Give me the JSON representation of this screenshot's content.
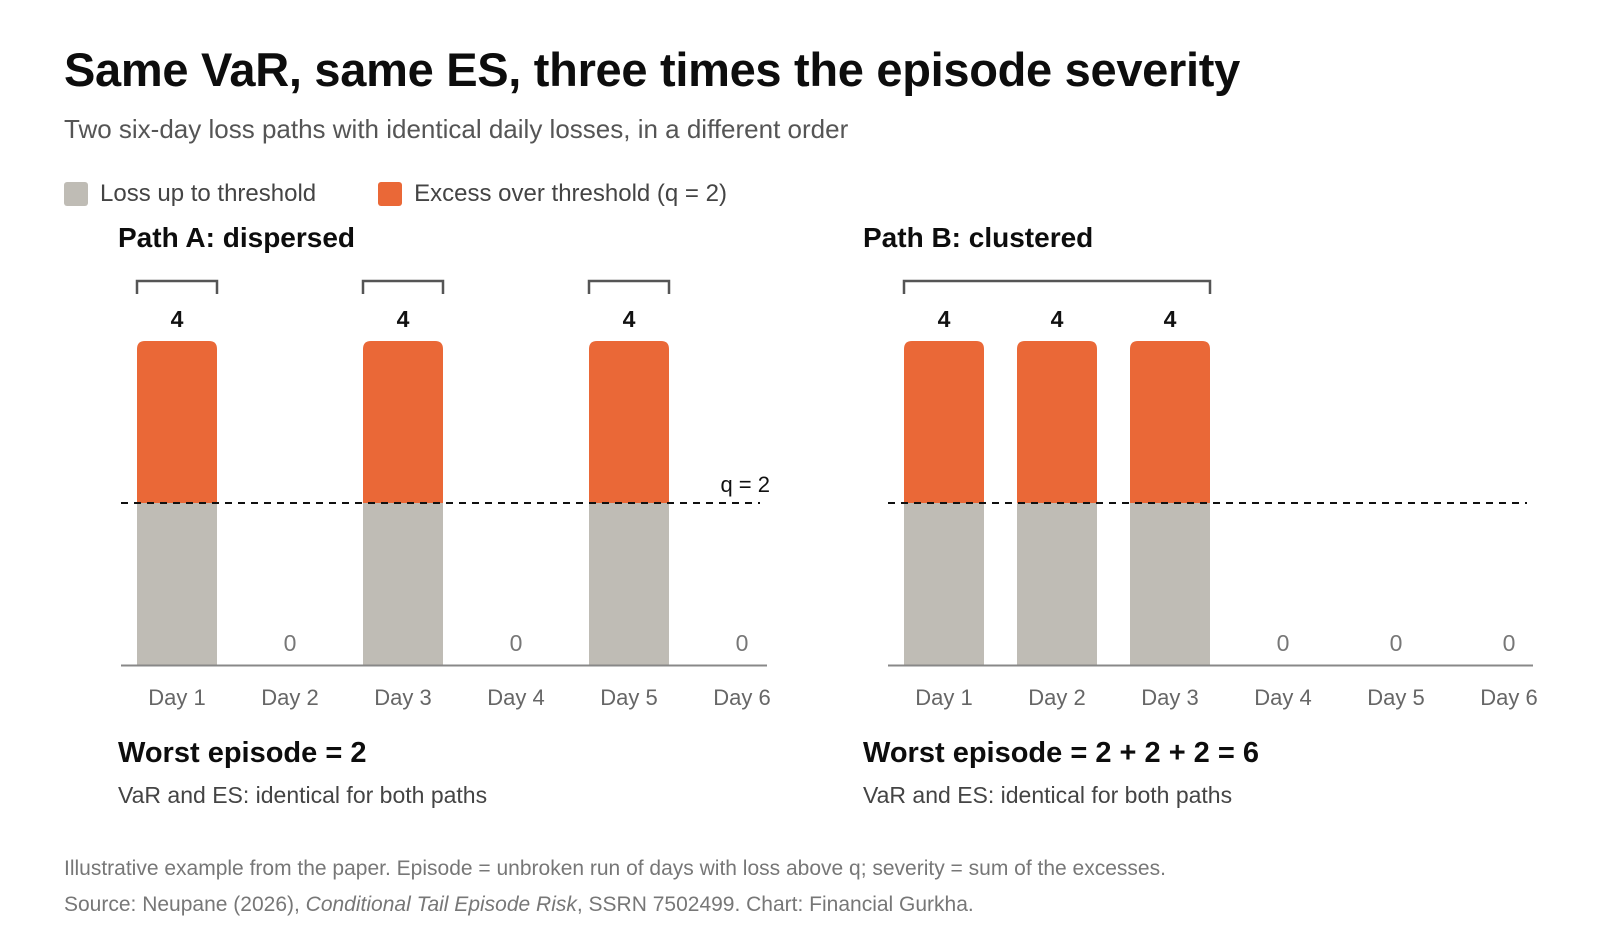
{
  "header": {
    "title": "Same VaR, same ES, three times the episode severity",
    "subtitle": "Two six-day loss paths with identical daily losses, in a different order"
  },
  "legend": {
    "threshold_label": "Loss up to threshold",
    "excess_label": "Excess over threshold (q = 2)"
  },
  "colors": {
    "threshold": "#bfbcb5",
    "excess": "#ea6837",
    "axis": "#888888",
    "bracket": "#555555"
  },
  "chart_data": [
    {
      "type": "bar",
      "stacked": true,
      "title": "Path A: dispersed",
      "categories": [
        "Day 1",
        "Day 2",
        "Day 3",
        "Day 4",
        "Day 5",
        "Day 6"
      ],
      "values": [
        4,
        0,
        4,
        0,
        4,
        0
      ],
      "series": [
        {
          "name": "Loss up to threshold",
          "values": [
            2,
            0,
            2,
            0,
            2,
            0
          ]
        },
        {
          "name": "Excess over threshold (q = 2)",
          "values": [
            2,
            0,
            2,
            0,
            2,
            0
          ]
        }
      ],
      "threshold": 2,
      "threshold_label": "q = 2",
      "episodes": [
        [
          0,
          0
        ],
        [
          2,
          2
        ],
        [
          4,
          4
        ]
      ],
      "ylim": [
        0,
        4
      ]
    },
    {
      "type": "bar",
      "stacked": true,
      "title": "Path B: clustered",
      "categories": [
        "Day 1",
        "Day 2",
        "Day 3",
        "Day 4",
        "Day 5",
        "Day 6"
      ],
      "values": [
        4,
        4,
        4,
        0,
        0,
        0
      ],
      "series": [
        {
          "name": "Loss up to threshold",
          "values": [
            2,
            2,
            2,
            0,
            0,
            0
          ]
        },
        {
          "name": "Excess over threshold (q = 2)",
          "values": [
            2,
            2,
            2,
            0,
            0,
            0
          ]
        }
      ],
      "threshold": 2,
      "threshold_label": "",
      "episodes": [
        [
          0,
          2
        ]
      ],
      "ylim": [
        0,
        4
      ]
    }
  ],
  "panels": [
    {
      "worst": "Worst episode = 2",
      "note": "VaR and ES: identical for both paths"
    },
    {
      "worst": "Worst episode = 2 + 2 + 2 = 6",
      "note": "VaR and ES: identical for both paths"
    }
  ],
  "footer": {
    "line1": "Illustrative example from the paper. Episode = unbroken run of days with loss above q; severity = sum of the excesses.",
    "source_pre": "Source: Neupane (2026), ",
    "source_title": "Conditional Tail Episode Risk",
    "source_post": ", SSRN 7502499. Chart: Financial Gurkha."
  }
}
